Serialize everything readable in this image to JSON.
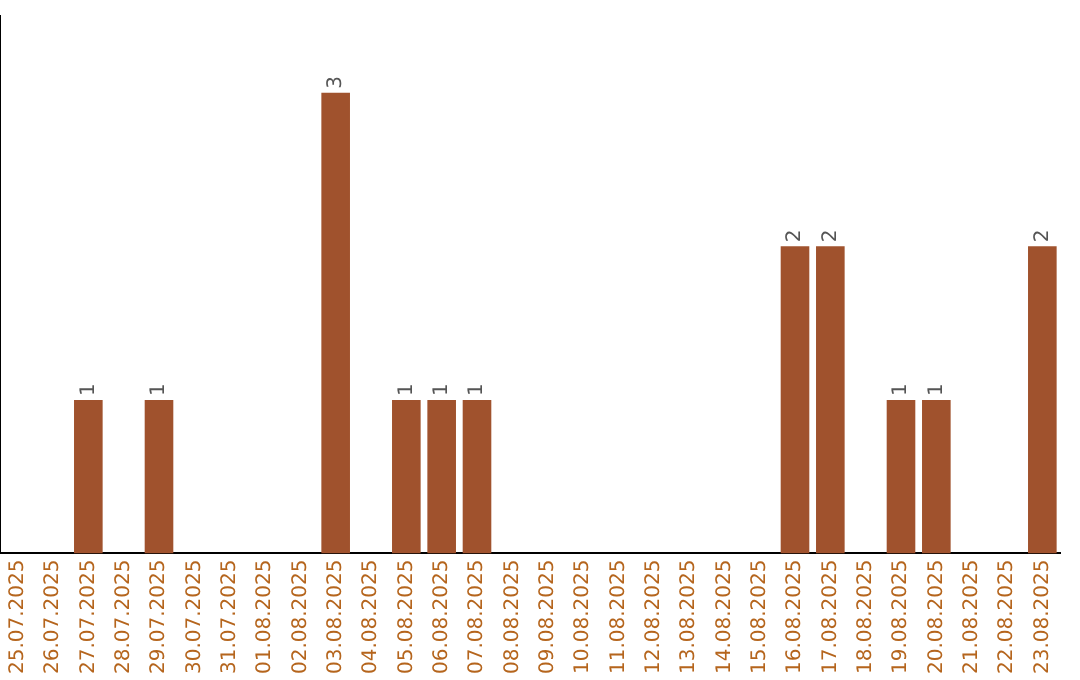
{
  "chart_data": {
    "type": "bar",
    "categories": [
      "25.07.2025",
      "26.07.2025",
      "27.07.2025",
      "28.07.2025",
      "29.07.2025",
      "30.07.2025",
      "31.07.2025",
      "01.08.2025",
      "02.08.2025",
      "03.08.2025",
      "04.08.2025",
      "05.08.2025",
      "06.08.2025",
      "07.08.2025",
      "08.08.2025",
      "09.08.2025",
      "10.08.2025",
      "11.08.2025",
      "12.08.2025",
      "13.08.2025",
      "14.08.2025",
      "15.08.2025",
      "16.08.2025",
      "17.08.2025",
      "18.08.2025",
      "19.08.2025",
      "20.08.2025",
      "21.08.2025",
      "22.08.2025",
      "23.08.2025"
    ],
    "values": [
      0,
      0,
      1,
      0,
      1,
      0,
      0,
      0,
      0,
      3,
      0,
      1,
      1,
      1,
      0,
      0,
      0,
      0,
      0,
      0,
      0,
      0,
      2,
      2,
      0,
      1,
      1,
      0,
      0,
      2
    ],
    "value_labels": [
      null,
      null,
      "1",
      null,
      "1",
      null,
      null,
      null,
      null,
      "3",
      null,
      "1",
      "1",
      "1",
      null,
      null,
      null,
      null,
      null,
      null,
      null,
      null,
      "2",
      "2",
      null,
      "1",
      "1",
      null,
      null,
      "2"
    ],
    "color": "#a0522d",
    "grid": false,
    "legend": false,
    "tick_labels": "x"
  }
}
